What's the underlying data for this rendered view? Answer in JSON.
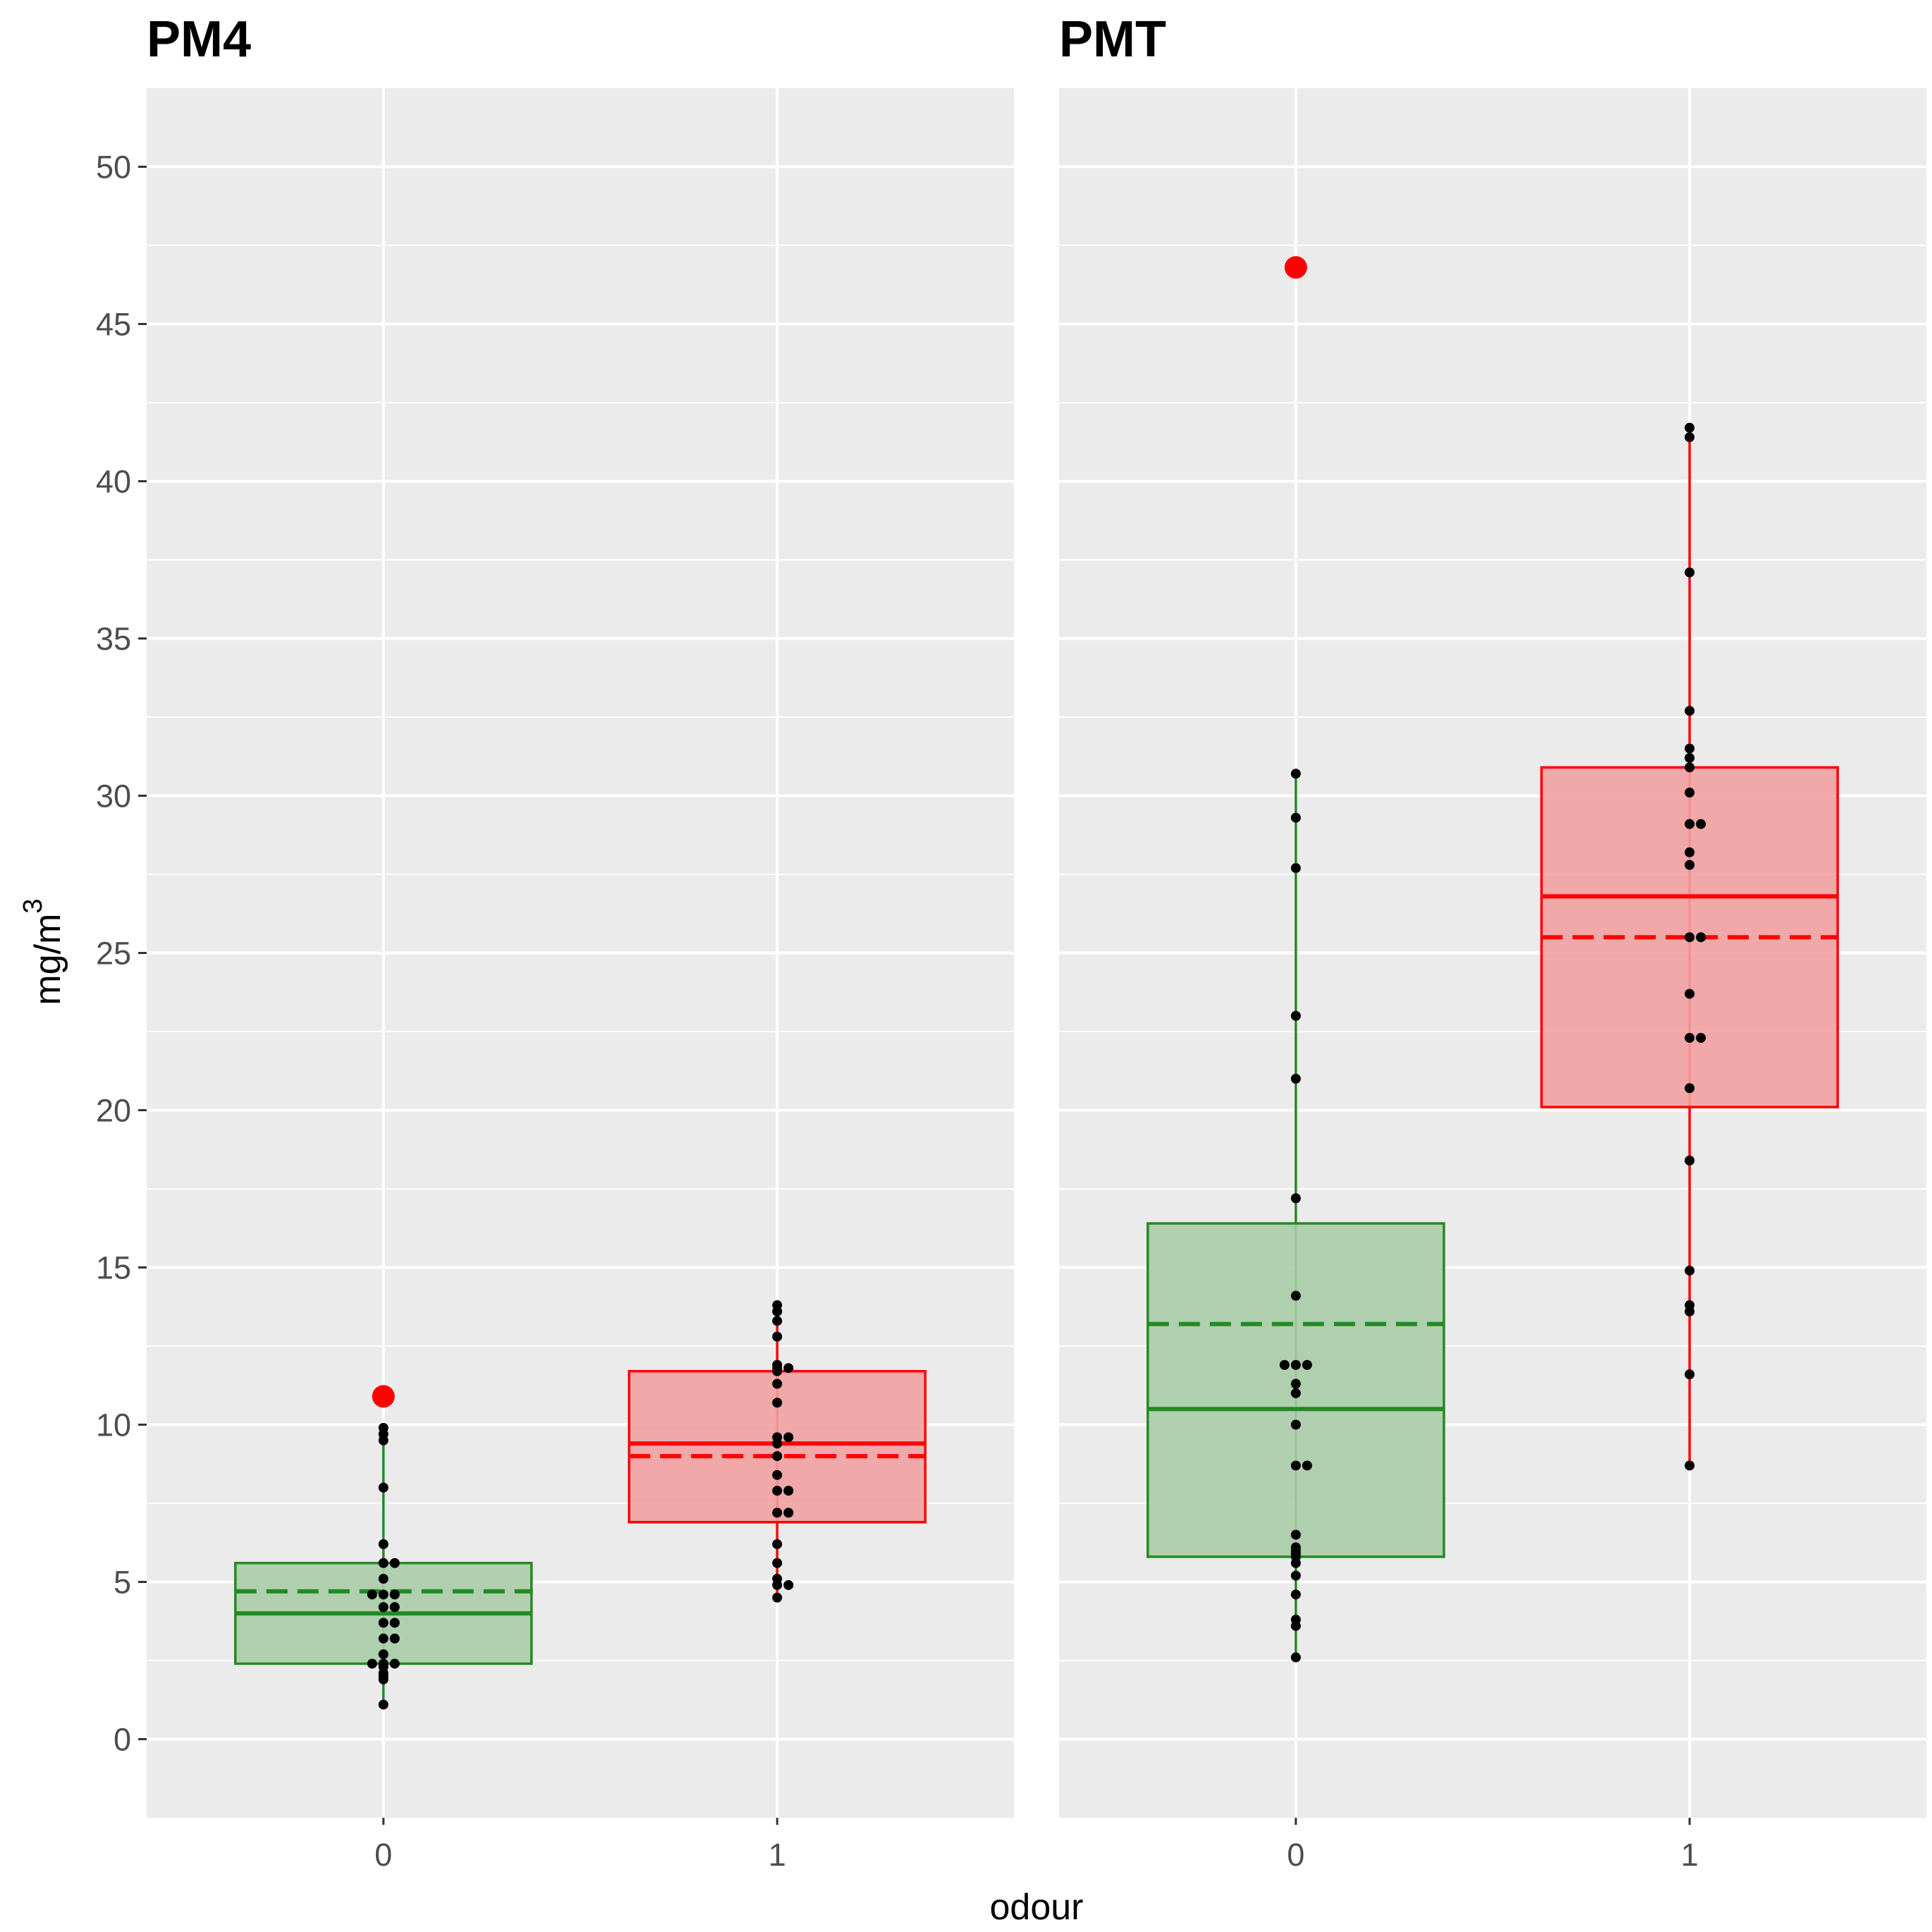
{
  "chart_data": {
    "type": "boxplot",
    "ylabel": "mg/m",
    "ylabel_superscript": "3",
    "xlabel": "odour",
    "ylim": [
      -2.5,
      52.5
    ],
    "yticks": [
      0,
      5,
      10,
      15,
      20,
      25,
      30,
      35,
      40,
      45,
      50
    ],
    "ytick_labels": [
      "0",
      "5",
      "10",
      "15",
      "20",
      "25",
      "30",
      "35",
      "40",
      "45",
      "50"
    ],
    "categories": [
      "0",
      "1"
    ],
    "colors": {
      "0": "#228b22",
      "1": "#ff0000",
      "0_fill": "#a9cca9",
      "1_fill": "#f1a1a1",
      "points": "#000000",
      "outlier": "#ff0000",
      "panel_bg": "#ebebeb",
      "grid": "#ffffff"
    },
    "legend": "none",
    "grid": true,
    "panels": [
      {
        "title": "PM4",
        "boxes": [
          {
            "category": "0",
            "q1": 2.4,
            "median": 4.0,
            "q3": 5.6,
            "mean": 4.7,
            "whisker_low": 1.1,
            "whisker_high": 9.9,
            "outliers": [
              10.9
            ],
            "points": [
              1.1,
              1.9,
              2.0,
              2.1,
              2.3,
              2.4,
              2.4,
              2.4,
              2.7,
              3.2,
              3.2,
              3.7,
              3.7,
              4.2,
              4.2,
              4.6,
              4.6,
              4.6,
              5.1,
              5.6,
              5.6,
              6.2,
              8.0,
              9.5,
              9.7,
              9.9
            ]
          },
          {
            "category": "1",
            "q1": 6.9,
            "median": 9.4,
            "q3": 11.7,
            "mean": 9.0,
            "whisker_low": 4.5,
            "whisker_high": 13.8,
            "outliers": [],
            "points": [
              4.5,
              4.9,
              4.9,
              5.1,
              5.6,
              6.2,
              7.2,
              7.2,
              7.9,
              7.9,
              8.4,
              9.0,
              9.4,
              9.6,
              9.6,
              10.7,
              11.3,
              11.7,
              11.8,
              11.8,
              11.9,
              12.8,
              13.3,
              13.6,
              13.8
            ]
          }
        ]
      },
      {
        "title": "PMT",
        "boxes": [
          {
            "category": "0",
            "q1": 5.8,
            "median": 10.5,
            "q3": 16.4,
            "mean": 13.2,
            "whisker_low": 2.6,
            "whisker_high": 30.7,
            "outliers": [
              46.8
            ],
            "points": [
              2.6,
              3.6,
              3.8,
              4.6,
              5.2,
              5.6,
              5.8,
              5.9,
              6.0,
              6.1,
              6.5,
              8.7,
              8.7,
              10.0,
              11.0,
              11.3,
              11.9,
              11.9,
              11.9,
              14.1,
              17.2,
              21.0,
              23.0,
              27.7,
              29.3,
              30.7
            ]
          },
          {
            "category": "1",
            "q1": 20.1,
            "median": 26.8,
            "q3": 30.9,
            "mean": 25.5,
            "whisker_low": 8.7,
            "whisker_high": 41.7,
            "outliers": [],
            "points": [
              8.7,
              11.6,
              13.6,
              13.8,
              14.9,
              18.4,
              20.7,
              22.3,
              22.3,
              23.7,
              25.5,
              25.5,
              27.8,
              28.2,
              29.1,
              29.1,
              30.1,
              30.9,
              31.2,
              31.5,
              32.7,
              37.1,
              41.4,
              41.7
            ]
          }
        ]
      }
    ]
  }
}
